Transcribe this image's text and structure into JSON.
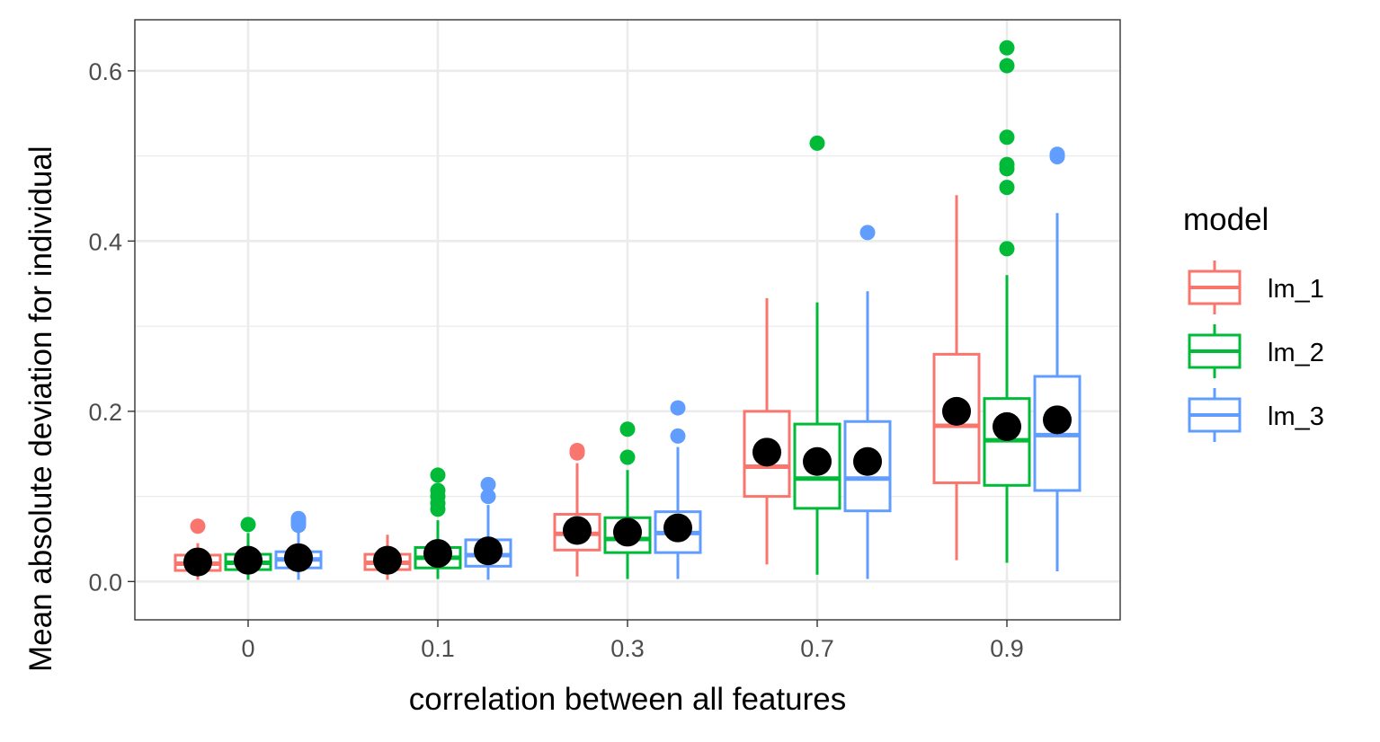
{
  "chart_data": {
    "type": "box",
    "title": "",
    "xlabel": "correlation between all features",
    "ylabel": "Mean absolute deviation for individual",
    "categories": [
      "0",
      "0.1",
      "0.3",
      "0.7",
      "0.9"
    ],
    "ylim": [
      -0.045,
      0.66
    ],
    "yticks": [
      0.0,
      0.2,
      0.4,
      0.6
    ],
    "ytick_labels": [
      "0.0",
      "0.2",
      "0.4",
      "0.6"
    ],
    "grid": true,
    "legend": {
      "title": "model",
      "position": "right"
    },
    "series": [
      {
        "name": "lm_1",
        "color": "#F8766D",
        "boxes": [
          {
            "min": 0.002,
            "q1": 0.013,
            "median": 0.021,
            "q3": 0.031,
            "max": 0.045,
            "mean": 0.023,
            "outliers": [
              0.065
            ]
          },
          {
            "min": 0.002,
            "q1": 0.014,
            "median": 0.022,
            "q3": 0.032,
            "max": 0.055,
            "mean": 0.025,
            "outliers": []
          },
          {
            "min": 0.006,
            "q1": 0.037,
            "median": 0.056,
            "q3": 0.079,
            "max": 0.139,
            "mean": 0.06,
            "outliers": [
              0.151,
              0.154
            ]
          },
          {
            "min": 0.02,
            "q1": 0.1,
            "median": 0.135,
            "q3": 0.2,
            "max": 0.333,
            "mean": 0.152,
            "outliers": []
          },
          {
            "min": 0.025,
            "q1": 0.116,
            "median": 0.183,
            "q3": 0.267,
            "max": 0.454,
            "mean": 0.2,
            "outliers": []
          }
        ]
      },
      {
        "name": "lm_2",
        "color": "#00BA38",
        "boxes": [
          {
            "min": 0.002,
            "q1": 0.014,
            "median": 0.022,
            "q3": 0.032,
            "max": 0.057,
            "mean": 0.025,
            "outliers": [
              0.067
            ]
          },
          {
            "min": 0.003,
            "q1": 0.016,
            "median": 0.028,
            "q3": 0.04,
            "max": 0.072,
            "mean": 0.033,
            "outliers": [
              0.085,
              0.092,
              0.1,
              0.107,
              0.125
            ]
          },
          {
            "min": 0.003,
            "q1": 0.034,
            "median": 0.05,
            "q3": 0.075,
            "max": 0.131,
            "mean": 0.058,
            "outliers": [
              0.146,
              0.179
            ]
          },
          {
            "min": 0.008,
            "q1": 0.086,
            "median": 0.121,
            "q3": 0.185,
            "max": 0.328,
            "mean": 0.141,
            "outliers": [
              0.515
            ]
          },
          {
            "min": 0.022,
            "q1": 0.113,
            "median": 0.166,
            "q3": 0.215,
            "max": 0.36,
            "mean": 0.182,
            "outliers": [
              0.391,
              0.463,
              0.485,
              0.49,
              0.522,
              0.606,
              0.627
            ]
          }
        ]
      },
      {
        "name": "lm_3",
        "color": "#619CFF",
        "boxes": [
          {
            "min": 0.002,
            "q1": 0.016,
            "median": 0.026,
            "q3": 0.035,
            "max": 0.06,
            "mean": 0.028,
            "outliers": [
              0.066,
              0.069,
              0.072,
              0.074
            ]
          },
          {
            "min": 0.002,
            "q1": 0.018,
            "median": 0.031,
            "q3": 0.049,
            "max": 0.09,
            "mean": 0.036,
            "outliers": [
              0.1,
              0.114
            ]
          },
          {
            "min": 0.003,
            "q1": 0.034,
            "median": 0.057,
            "q3": 0.082,
            "max": 0.158,
            "mean": 0.063,
            "outliers": [
              0.171,
              0.204
            ]
          },
          {
            "min": 0.003,
            "q1": 0.083,
            "median": 0.121,
            "q3": 0.188,
            "max": 0.341,
            "mean": 0.141,
            "outliers": [
              0.41
            ]
          },
          {
            "min": 0.012,
            "q1": 0.107,
            "median": 0.172,
            "q3": 0.241,
            "max": 0.433,
            "mean": 0.19,
            "outliers": [
              0.499,
              0.502
            ]
          }
        ]
      }
    ]
  }
}
